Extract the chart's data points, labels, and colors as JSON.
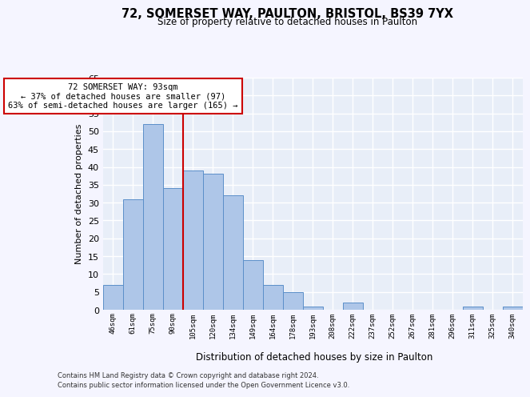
{
  "title_line1": "72, SOMERSET WAY, PAULTON, BRISTOL, BS39 7YX",
  "title_line2": "Size of property relative to detached houses in Paulton",
  "xlabel": "Distribution of detached houses by size in Paulton",
  "ylabel": "Number of detached properties",
  "bar_labels": [
    "46sqm",
    "61sqm",
    "75sqm",
    "90sqm",
    "105sqm",
    "120sqm",
    "134sqm",
    "149sqm",
    "164sqm",
    "178sqm",
    "193sqm",
    "208sqm",
    "222sqm",
    "237sqm",
    "252sqm",
    "267sqm",
    "281sqm",
    "296sqm",
    "311sqm",
    "325sqm",
    "340sqm"
  ],
  "bar_values": [
    7,
    31,
    52,
    34,
    39,
    38,
    32,
    14,
    7,
    5,
    1,
    0,
    2,
    0,
    0,
    0,
    0,
    0,
    1,
    0,
    1
  ],
  "bar_color": "#aec6e8",
  "bar_edgecolor": "#5b8fc9",
  "background_color": "#e8eef8",
  "fig_background_color": "#f5f5ff",
  "grid_color": "#ffffff",
  "ylim": [
    0,
    65
  ],
  "yticks": [
    0,
    5,
    10,
    15,
    20,
    25,
    30,
    35,
    40,
    45,
    50,
    55,
    60,
    65
  ],
  "vline_x": 3.5,
  "vline_color": "#cc0000",
  "annotation_text": "72 SOMERSET WAY: 93sqm\n← 37% of detached houses are smaller (97)\n63% of semi-detached houses are larger (165) →",
  "annotation_box_color": "#ffffff",
  "annotation_box_edgecolor": "#cc0000",
  "footer_line1": "Contains HM Land Registry data © Crown copyright and database right 2024.",
  "footer_line2": "Contains public sector information licensed under the Open Government Licence v3.0."
}
